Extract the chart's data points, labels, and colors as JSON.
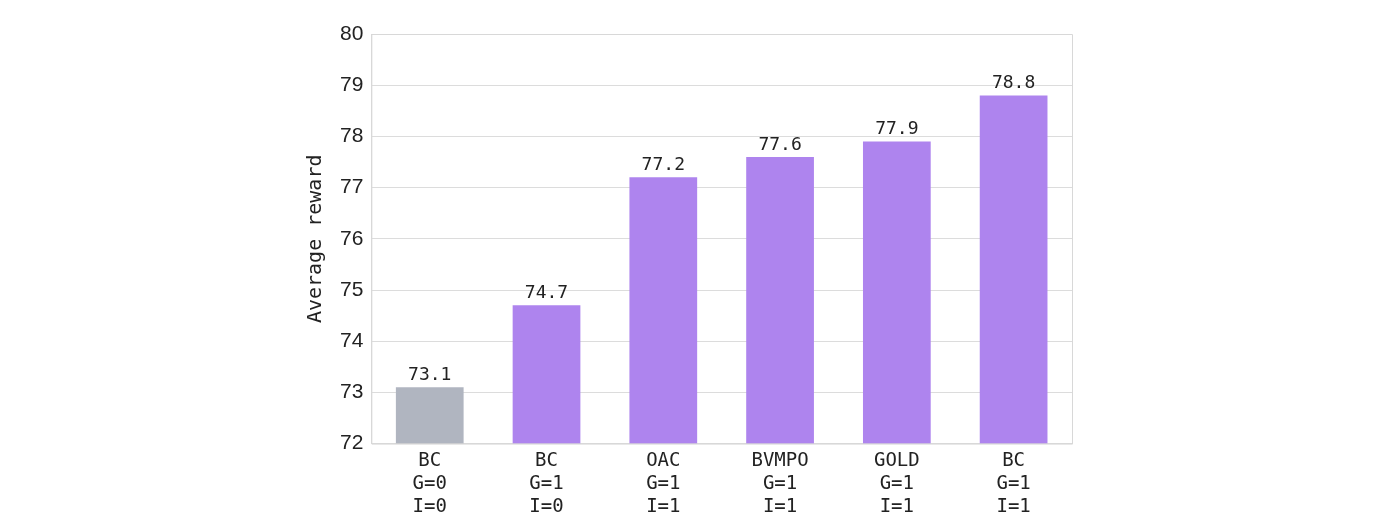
{
  "chart_data": {
    "type": "bar",
    "ylabel": "Average reward",
    "categories": [
      "BC\nG=0\nI=0",
      "BC\nG=1\nI=0",
      "OAC\nG=1\nI=1",
      "BVMPO\nG=1\nI=1",
      "GOLD\nG=1\nI=1",
      "BC\nG=1\nI=1"
    ],
    "values": [
      73.1,
      74.7,
      77.2,
      77.6,
      77.9,
      78.8
    ],
    "colors": [
      "#b0b5c0",
      "#ae84ee",
      "#ae84ee",
      "#ae84ee",
      "#ae84ee",
      "#ae84ee"
    ],
    "ylim": [
      72,
      80
    ],
    "yticks": [
      72,
      73,
      74,
      75,
      76,
      77,
      78,
      79,
      80
    ],
    "grid": "y",
    "data_labels": true
  }
}
